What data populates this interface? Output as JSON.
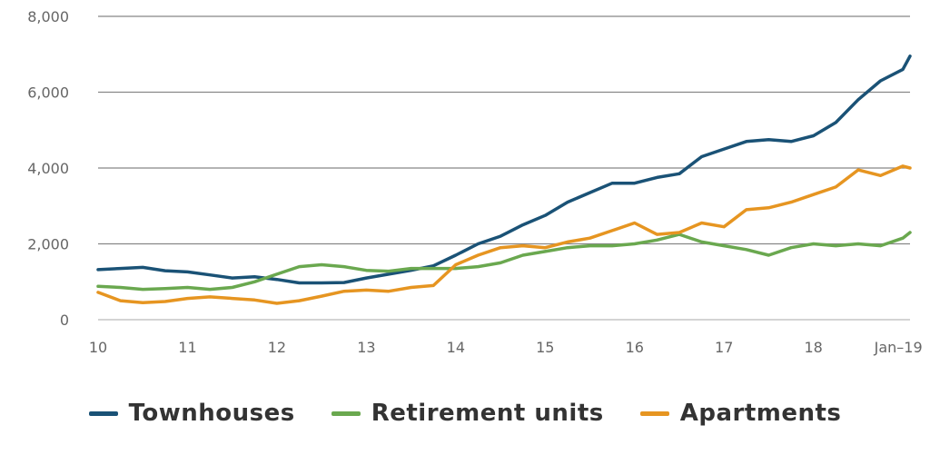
{
  "chart_data": {
    "type": "line",
    "x_tick_labels": [
      "10",
      "11",
      "12",
      "13",
      "14",
      "15",
      "16",
      "17",
      "18",
      "Jan–19"
    ],
    "y_tick_labels": [
      "0",
      "2,000",
      "4,000",
      "6,000",
      "8,000"
    ],
    "ylim": [
      0,
      8000
    ],
    "xlim": [
      2010.0,
      2019.08
    ],
    "grid": true,
    "legend_position": "bottom",
    "series": [
      {
        "name": "Townhouses",
        "color": "#1a5276",
        "points": [
          [
            2010.0,
            1320
          ],
          [
            2010.25,
            1350
          ],
          [
            2010.5,
            1380
          ],
          [
            2010.75,
            1290
          ],
          [
            2011.0,
            1260
          ],
          [
            2011.25,
            1180
          ],
          [
            2011.5,
            1100
          ],
          [
            2011.75,
            1130
          ],
          [
            2012.0,
            1060
          ],
          [
            2012.25,
            970
          ],
          [
            2012.5,
            970
          ],
          [
            2012.75,
            980
          ],
          [
            2013.0,
            1100
          ],
          [
            2013.25,
            1200
          ],
          [
            2013.5,
            1300
          ],
          [
            2013.75,
            1420
          ],
          [
            2014.0,
            1700
          ],
          [
            2014.25,
            2000
          ],
          [
            2014.5,
            2200
          ],
          [
            2014.75,
            2500
          ],
          [
            2015.0,
            2750
          ],
          [
            2015.25,
            3100
          ],
          [
            2015.5,
            3350
          ],
          [
            2015.75,
            3600
          ],
          [
            2016.0,
            3600
          ],
          [
            2016.25,
            3750
          ],
          [
            2016.5,
            3850
          ],
          [
            2016.75,
            4300
          ],
          [
            2017.0,
            4500
          ],
          [
            2017.25,
            4700
          ],
          [
            2017.5,
            4750
          ],
          [
            2017.75,
            4700
          ],
          [
            2018.0,
            4850
          ],
          [
            2018.25,
            5200
          ],
          [
            2018.5,
            5800
          ],
          [
            2018.75,
            6300
          ],
          [
            2019.0,
            6600
          ],
          [
            2019.08,
            6950
          ]
        ]
      },
      {
        "name": "Retirement units",
        "color": "#6aa84f",
        "points": [
          [
            2010.0,
            880
          ],
          [
            2010.25,
            850
          ],
          [
            2010.5,
            800
          ],
          [
            2010.75,
            820
          ],
          [
            2011.0,
            850
          ],
          [
            2011.25,
            800
          ],
          [
            2011.5,
            850
          ],
          [
            2011.75,
            1000
          ],
          [
            2012.0,
            1200
          ],
          [
            2012.25,
            1400
          ],
          [
            2012.5,
            1450
          ],
          [
            2012.75,
            1400
          ],
          [
            2013.0,
            1300
          ],
          [
            2013.25,
            1280
          ],
          [
            2013.5,
            1350
          ],
          [
            2013.75,
            1350
          ],
          [
            2014.0,
            1350
          ],
          [
            2014.25,
            1400
          ],
          [
            2014.5,
            1500
          ],
          [
            2014.75,
            1700
          ],
          [
            2015.0,
            1800
          ],
          [
            2015.25,
            1900
          ],
          [
            2015.5,
            1950
          ],
          [
            2015.75,
            1950
          ],
          [
            2016.0,
            2000
          ],
          [
            2016.25,
            2100
          ],
          [
            2016.5,
            2250
          ],
          [
            2016.75,
            2050
          ],
          [
            2017.0,
            1950
          ],
          [
            2017.25,
            1850
          ],
          [
            2017.5,
            1700
          ],
          [
            2017.75,
            1900
          ],
          [
            2018.0,
            2000
          ],
          [
            2018.25,
            1950
          ],
          [
            2018.5,
            2000
          ],
          [
            2018.75,
            1950
          ],
          [
            2019.0,
            2150
          ],
          [
            2019.08,
            2300
          ]
        ]
      },
      {
        "name": "Apartments",
        "color": "#e69521",
        "points": [
          [
            2010.0,
            720
          ],
          [
            2010.25,
            500
          ],
          [
            2010.5,
            450
          ],
          [
            2010.75,
            480
          ],
          [
            2011.0,
            560
          ],
          [
            2011.25,
            600
          ],
          [
            2011.5,
            560
          ],
          [
            2011.75,
            520
          ],
          [
            2012.0,
            430
          ],
          [
            2012.25,
            500
          ],
          [
            2012.5,
            620
          ],
          [
            2012.75,
            750
          ],
          [
            2013.0,
            780
          ],
          [
            2013.25,
            750
          ],
          [
            2013.5,
            850
          ],
          [
            2013.75,
            900
          ],
          [
            2014.0,
            1450
          ],
          [
            2014.25,
            1700
          ],
          [
            2014.5,
            1900
          ],
          [
            2014.75,
            1950
          ],
          [
            2015.0,
            1900
          ],
          [
            2015.25,
            2050
          ],
          [
            2015.5,
            2150
          ],
          [
            2015.75,
            2350
          ],
          [
            2016.0,
            2550
          ],
          [
            2016.25,
            2250
          ],
          [
            2016.5,
            2300
          ],
          [
            2016.75,
            2550
          ],
          [
            2017.0,
            2450
          ],
          [
            2017.25,
            2900
          ],
          [
            2017.5,
            2950
          ],
          [
            2017.75,
            3100
          ],
          [
            2018.0,
            3300
          ],
          [
            2018.25,
            3500
          ],
          [
            2018.5,
            3950
          ],
          [
            2018.75,
            3800
          ],
          [
            2019.0,
            4050
          ],
          [
            2019.08,
            4000
          ]
        ]
      }
    ]
  }
}
